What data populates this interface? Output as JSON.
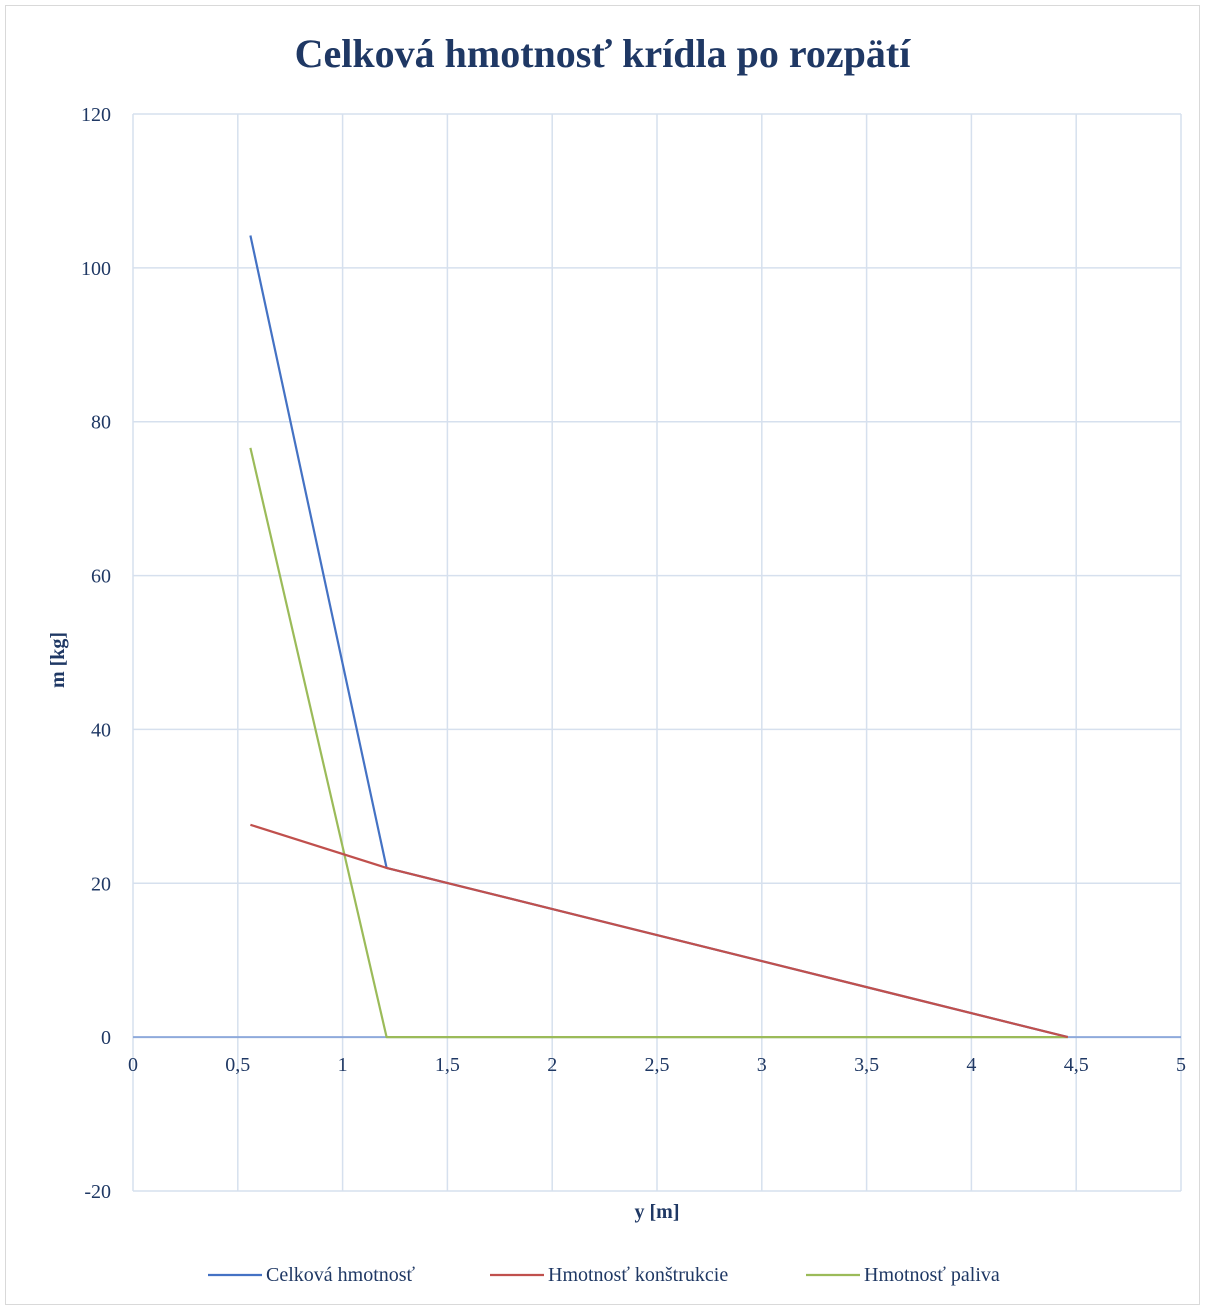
{
  "chart_data": {
    "type": "line",
    "title": "Celková hmotnosť krídla po rozpätí",
    "xlabel": "y [m]",
    "ylabel": "m [kg]",
    "xlim": [
      0,
      5
    ],
    "ylim": [
      -20,
      120
    ],
    "x_ticks": [
      0,
      0.5,
      1,
      1.5,
      2,
      2.5,
      3,
      3.5,
      4,
      4.5,
      5
    ],
    "x_tick_labels": [
      "0",
      "0,5",
      "1",
      "1,5",
      "2",
      "2,5",
      "3",
      "3,5",
      "4",
      "4,5",
      "5"
    ],
    "y_ticks": [
      -20,
      0,
      20,
      40,
      60,
      80,
      100,
      120
    ],
    "y_tick_labels": [
      "-20",
      "0",
      "20",
      "40",
      "60",
      "80",
      "100",
      "120"
    ],
    "grid": true,
    "legend_position": "bottom",
    "series": [
      {
        "name": "Celková hmotnosť",
        "color": "#4472c4",
        "points": [
          [
            0.56,
            104.2
          ],
          [
            1.21,
            22.0
          ],
          [
            4.46,
            0.0
          ]
        ]
      },
      {
        "name": "Hmotnosť konštrukcie",
        "color": "#c0504d",
        "points": [
          [
            0.56,
            27.6
          ],
          [
            1.21,
            22.0
          ],
          [
            4.46,
            0.0
          ]
        ]
      },
      {
        "name": "Hmotnosť paliva",
        "color": "#9bbb59",
        "points": [
          [
            0.56,
            76.6
          ],
          [
            1.21,
            0.0
          ],
          [
            4.46,
            0.0
          ]
        ]
      }
    ]
  }
}
